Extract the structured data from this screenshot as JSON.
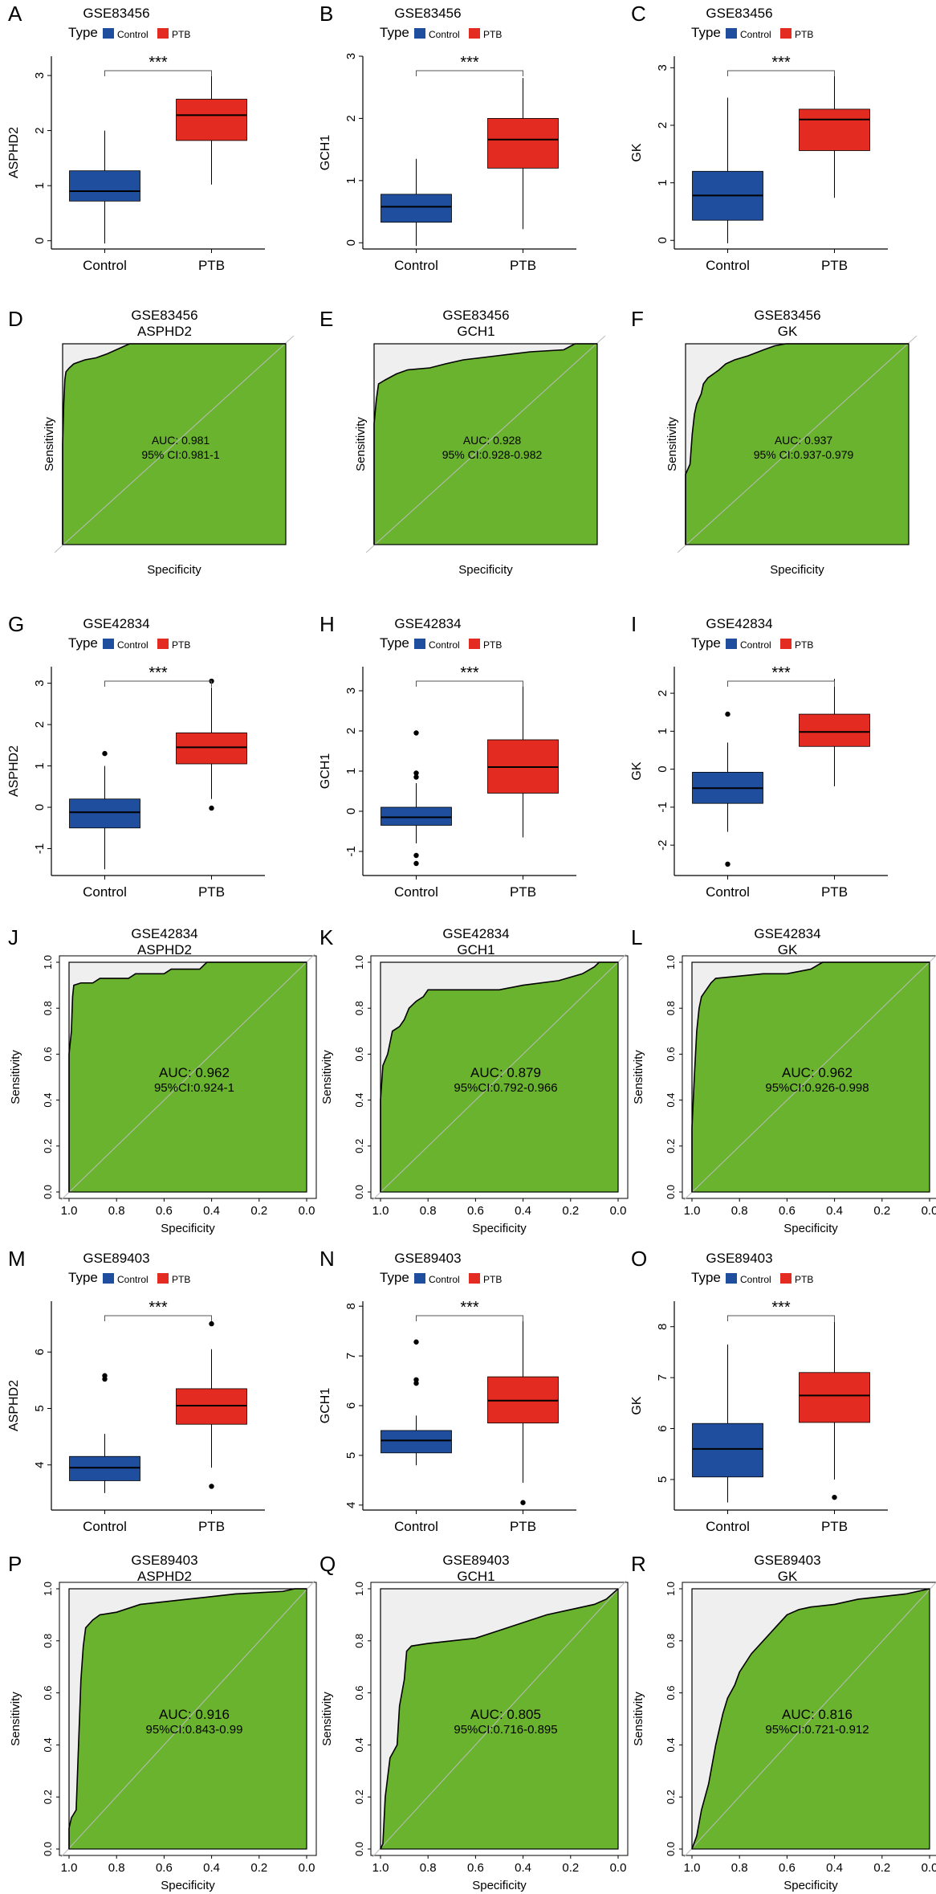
{
  "figure": {
    "colors": {
      "control": "#1f4e9e",
      "ptb": "#e32b21",
      "roc_fill": "#6ab32f",
      "roc_shade": "#efefef",
      "axis": "#000000"
    },
    "legend": {
      "title": "Type",
      "items": [
        "Control",
        "PTB"
      ]
    },
    "box_xlabels": [
      "Control",
      "PTB"
    ],
    "roc_axis": {
      "sensitivity": "Sensitivity",
      "specificity": "Specificity"
    }
  },
  "chart_data": [
    {
      "panel": "A",
      "type": "box",
      "title": "GSE83456",
      "ylabel": "ASPHD2",
      "ylim": [
        -0.15,
        3.35
      ],
      "yticks": [
        "0",
        "1",
        "2",
        "3"
      ],
      "signif": "***",
      "categories": [
        "Control",
        "PTB"
      ],
      "boxes": [
        {
          "name": "Control",
          "min": -0.05,
          "q1": 0.72,
          "median": 0.9,
          "q3": 1.27,
          "max": 2.0,
          "outliers": []
        },
        {
          "name": "PTB",
          "min": 1.02,
          "q1": 1.82,
          "median": 2.28,
          "q3": 2.57,
          "max": 3.08,
          "outliers": []
        }
      ]
    },
    {
      "panel": "B",
      "type": "box",
      "title": "GSE83456",
      "ylabel": "GCH1",
      "ylim": [
        -0.1,
        3.0
      ],
      "yticks": [
        "0",
        "1",
        "2",
        "3"
      ],
      "signif": "***",
      "categories": [
        "Control",
        "PTB"
      ],
      "boxes": [
        {
          "name": "Control",
          "min": -0.05,
          "q1": 0.33,
          "median": 0.58,
          "q3": 0.78,
          "max": 1.35,
          "outliers": []
        },
        {
          "name": "PTB",
          "min": 0.22,
          "q1": 1.2,
          "median": 1.66,
          "q3": 2.0,
          "max": 2.65,
          "outliers": []
        }
      ]
    },
    {
      "panel": "C",
      "type": "box",
      "title": "GSE83456",
      "ylabel": "GK",
      "ylim": [
        -0.15,
        3.2
      ],
      "yticks": [
        "0",
        "1",
        "2",
        "3"
      ],
      "signif": "***",
      "categories": [
        "Control",
        "PTB"
      ],
      "boxes": [
        {
          "name": "Control",
          "min": -0.05,
          "q1": 0.35,
          "median": 0.78,
          "q3": 1.2,
          "max": 2.48,
          "outliers": []
        },
        {
          "name": "PTB",
          "min": 0.74,
          "q1": 1.56,
          "median": 2.1,
          "q3": 2.28,
          "max": 2.86,
          "outliers": []
        }
      ]
    },
    {
      "panel": "D",
      "type": "roc",
      "title": "GSE83456",
      "subtitle": "ASPHD2",
      "auc": "AUC: 0.981",
      "ci": "95% CI:0.981-1",
      "ticks": false,
      "curve": [
        [
          1,
          0
        ],
        [
          1,
          0.5
        ],
        [
          0.995,
          0.7
        ],
        [
          0.99,
          0.82
        ],
        [
          0.985,
          0.86
        ],
        [
          0.97,
          0.88
        ],
        [
          0.95,
          0.9
        ],
        [
          0.9,
          0.92
        ],
        [
          0.85,
          0.93
        ],
        [
          0.8,
          0.95
        ],
        [
          0.76,
          0.97
        ],
        [
          0.7,
          1.0
        ],
        [
          0,
          1.0
        ]
      ]
    },
    {
      "panel": "E",
      "type": "roc",
      "title": "GSE83456",
      "subtitle": "GCH1",
      "auc": "AUC: 0.928",
      "ci": "95% CI:0.928-0.982",
      "ticks": false,
      "curve": [
        [
          1,
          0
        ],
        [
          1,
          0.6
        ],
        [
          0.99,
          0.72
        ],
        [
          0.98,
          0.8
        ],
        [
          0.95,
          0.82
        ],
        [
          0.9,
          0.85
        ],
        [
          0.85,
          0.87
        ],
        [
          0.75,
          0.88
        ],
        [
          0.68,
          0.9
        ],
        [
          0.6,
          0.92
        ],
        [
          0.45,
          0.94
        ],
        [
          0.3,
          0.96
        ],
        [
          0.15,
          0.97
        ],
        [
          0.1,
          1.0
        ],
        [
          0,
          1.0
        ]
      ]
    },
    {
      "panel": "F",
      "type": "roc",
      "title": "GSE83456",
      "subtitle": "GK",
      "auc": "AUC: 0.937",
      "ci": "95% CI:0.937-0.979",
      "ticks": false,
      "curve": [
        [
          1,
          0
        ],
        [
          1,
          0.35
        ],
        [
          0.98,
          0.4
        ],
        [
          0.97,
          0.55
        ],
        [
          0.96,
          0.65
        ],
        [
          0.95,
          0.7
        ],
        [
          0.93,
          0.75
        ],
        [
          0.92,
          0.8
        ],
        [
          0.9,
          0.83
        ],
        [
          0.85,
          0.87
        ],
        [
          0.82,
          0.9
        ],
        [
          0.78,
          0.92
        ],
        [
          0.72,
          0.94
        ],
        [
          0.65,
          0.97
        ],
        [
          0.6,
          0.99
        ],
        [
          0.55,
          1.0
        ],
        [
          0,
          1.0
        ]
      ]
    },
    {
      "panel": "G",
      "type": "box",
      "title": "GSE42834",
      "ylabel": "ASPHD2",
      "ylim": [
        -1.65,
        3.4
      ],
      "yticks": [
        "-1",
        "0",
        "1",
        "2",
        "3"
      ],
      "signif": "***",
      "categories": [
        "Control",
        "PTB"
      ],
      "boxes": [
        {
          "name": "Control",
          "min": -1.5,
          "q1": -0.5,
          "median": -0.12,
          "q3": 0.2,
          "max": 1.0,
          "outliers": [
            1.3
          ]
        },
        {
          "name": "PTB",
          "min": 0.2,
          "q1": 1.05,
          "median": 1.45,
          "q3": 1.8,
          "max": 2.9,
          "outliers": [
            3.05,
            -0.02
          ]
        }
      ]
    },
    {
      "panel": "H",
      "type": "box",
      "title": "GSE42834",
      "ylabel": "GCH1",
      "ylim": [
        -1.6,
        3.6
      ],
      "yticks": [
        "-1",
        "0",
        "1",
        "2",
        "3"
      ],
      "signif": "***",
      "categories": [
        "Control",
        "PTB"
      ],
      "boxes": [
        {
          "name": "Control",
          "min": -0.8,
          "q1": -0.35,
          "median": -0.15,
          "q3": 0.1,
          "max": 0.7,
          "outliers": [
            1.95,
            0.95,
            0.85,
            -1.1,
            -1.3
          ]
        },
        {
          "name": "PTB",
          "min": -0.65,
          "q1": 0.45,
          "median": 1.1,
          "q3": 1.78,
          "max": 3.2,
          "outliers": []
        }
      ]
    },
    {
      "panel": "I",
      "type": "box",
      "title": "GSE42834",
      "ylabel": "GK",
      "ylim": [
        -2.8,
        2.7
      ],
      "yticks": [
        "-2",
        "-1",
        "0",
        "1",
        "2"
      ],
      "signif": "***",
      "categories": [
        "Control",
        "PTB"
      ],
      "boxes": [
        {
          "name": "Control",
          "min": -1.65,
          "q1": -0.9,
          "median": -0.5,
          "q3": -0.08,
          "max": 0.7,
          "outliers": [
            1.45,
            -2.5
          ]
        },
        {
          "name": "PTB",
          "min": -0.45,
          "q1": 0.6,
          "median": 0.98,
          "q3": 1.45,
          "max": 2.38,
          "outliers": []
        }
      ]
    },
    {
      "panel": "J",
      "type": "roc",
      "title": "GSE42834",
      "subtitle": "ASPHD2",
      "auc": "AUC: 0.962",
      "ci": "95%CI:0.924-1",
      "ticks": true,
      "curve": [
        [
          1,
          0
        ],
        [
          1,
          0.6
        ],
        [
          0.99,
          0.7
        ],
        [
          0.985,
          0.85
        ],
        [
          0.98,
          0.9
        ],
        [
          0.95,
          0.91
        ],
        [
          0.9,
          0.91
        ],
        [
          0.87,
          0.93
        ],
        [
          0.75,
          0.93
        ],
        [
          0.72,
          0.95
        ],
        [
          0.6,
          0.95
        ],
        [
          0.57,
          0.97
        ],
        [
          0.45,
          0.97
        ],
        [
          0.42,
          1.0
        ],
        [
          0,
          1.0
        ]
      ]
    },
    {
      "panel": "K",
      "type": "roc",
      "title": "GSE42834",
      "subtitle": "GCH1",
      "auc": "AUC: 0.879",
      "ci": "95%CI:0.792-0.966",
      "ticks": true,
      "curve": [
        [
          1,
          0
        ],
        [
          1,
          0.4
        ],
        [
          0.99,
          0.55
        ],
        [
          0.97,
          0.6
        ],
        [
          0.96,
          0.65
        ],
        [
          0.95,
          0.7
        ],
        [
          0.92,
          0.72
        ],
        [
          0.9,
          0.75
        ],
        [
          0.88,
          0.8
        ],
        [
          0.85,
          0.83
        ],
        [
          0.82,
          0.85
        ],
        [
          0.8,
          0.88
        ],
        [
          0.6,
          0.88
        ],
        [
          0.5,
          0.88
        ],
        [
          0.4,
          0.9
        ],
        [
          0.25,
          0.92
        ],
        [
          0.15,
          0.95
        ],
        [
          0.1,
          0.98
        ],
        [
          0.08,
          1.0
        ],
        [
          0,
          1.0
        ]
      ]
    },
    {
      "panel": "L",
      "type": "roc",
      "title": "GSE42834",
      "subtitle": "GK",
      "auc": "AUC: 0.962",
      "ci": "95%CI:0.926-0.998",
      "ticks": true,
      "curve": [
        [
          1,
          0
        ],
        [
          1,
          0.28
        ],
        [
          0.99,
          0.5
        ],
        [
          0.98,
          0.7
        ],
        [
          0.97,
          0.8
        ],
        [
          0.96,
          0.85
        ],
        [
          0.94,
          0.88
        ],
        [
          0.92,
          0.91
        ],
        [
          0.9,
          0.93
        ],
        [
          0.8,
          0.94
        ],
        [
          0.7,
          0.95
        ],
        [
          0.6,
          0.95
        ],
        [
          0.5,
          0.97
        ],
        [
          0.45,
          1.0
        ],
        [
          0,
          1.0
        ]
      ]
    },
    {
      "panel": "M",
      "type": "box",
      "title": "GSE89403",
      "ylabel": "ASPHD2",
      "ylim": [
        3.2,
        6.9
      ],
      "yticks": [
        "4",
        "5",
        "6"
      ],
      "signif": "***",
      "categories": [
        "Control",
        "PTB"
      ],
      "boxes": [
        {
          "name": "Control",
          "min": 3.5,
          "q1": 3.72,
          "median": 3.95,
          "q3": 4.15,
          "max": 4.55,
          "outliers": [
            5.58,
            5.52
          ]
        },
        {
          "name": "PTB",
          "min": 3.95,
          "q1": 4.72,
          "median": 5.05,
          "q3": 5.35,
          "max": 6.05,
          "outliers": [
            6.5,
            3.62
          ]
        }
      ]
    },
    {
      "panel": "N",
      "type": "box",
      "title": "GSE89403",
      "ylabel": "GCH1",
      "ylim": [
        3.9,
        8.1
      ],
      "yticks": [
        "4",
        "5",
        "6",
        "7",
        "8"
      ],
      "signif": "***",
      "categories": [
        "Control",
        "PTB"
      ],
      "boxes": [
        {
          "name": "Control",
          "min": 4.8,
          "q1": 5.05,
          "median": 5.3,
          "q3": 5.5,
          "max": 5.8,
          "outliers": [
            7.28,
            6.52,
            6.45
          ]
        },
        {
          "name": "PTB",
          "min": 4.45,
          "q1": 5.65,
          "median": 6.1,
          "q3": 6.58,
          "max": 7.7,
          "outliers": [
            4.05
          ]
        }
      ]
    },
    {
      "panel": "O",
      "type": "box",
      "title": "GSE89403",
      "ylabel": "GK",
      "ylim": [
        4.4,
        8.5
      ],
      "yticks": [
        "5",
        "6",
        "7",
        "8"
      ],
      "signif": "***",
      "categories": [
        "Control",
        "PTB"
      ],
      "boxes": [
        {
          "name": "Control",
          "min": 4.55,
          "q1": 5.05,
          "median": 5.6,
          "q3": 6.1,
          "max": 7.65,
          "outliers": []
        },
        {
          "name": "PTB",
          "min": 5.0,
          "q1": 6.12,
          "median": 6.65,
          "q3": 7.1,
          "max": 8.1,
          "outliers": [
            4.65
          ]
        }
      ]
    },
    {
      "panel": "P",
      "type": "roc",
      "title": "GSE89403",
      "subtitle": "ASPHD2",
      "auc": "AUC: 0.916",
      "ci": "95%CI:0.843-0.99",
      "ticks": true,
      "curve": [
        [
          1,
          0
        ],
        [
          1,
          0.08
        ],
        [
          0.99,
          0.12
        ],
        [
          0.97,
          0.15
        ],
        [
          0.96,
          0.4
        ],
        [
          0.95,
          0.65
        ],
        [
          0.94,
          0.78
        ],
        [
          0.93,
          0.85
        ],
        [
          0.9,
          0.88
        ],
        [
          0.87,
          0.9
        ],
        [
          0.8,
          0.91
        ],
        [
          0.7,
          0.94
        ],
        [
          0.6,
          0.95
        ],
        [
          0.5,
          0.96
        ],
        [
          0.3,
          0.98
        ],
        [
          0.1,
          0.99
        ],
        [
          0.05,
          1.0
        ],
        [
          0,
          1.0
        ]
      ]
    },
    {
      "panel": "Q",
      "type": "roc",
      "title": "GSE89403",
      "subtitle": "GCH1",
      "auc": "AUC: 0.805",
      "ci": "95%CI:0.716-0.895",
      "ticks": true,
      "curve": [
        [
          1,
          0
        ],
        [
          0.99,
          0.02
        ],
        [
          0.98,
          0.2
        ],
        [
          0.96,
          0.35
        ],
        [
          0.93,
          0.4
        ],
        [
          0.92,
          0.55
        ],
        [
          0.9,
          0.65
        ],
        [
          0.89,
          0.76
        ],
        [
          0.87,
          0.78
        ],
        [
          0.8,
          0.79
        ],
        [
          0.7,
          0.8
        ],
        [
          0.6,
          0.81
        ],
        [
          0.5,
          0.84
        ],
        [
          0.4,
          0.87
        ],
        [
          0.3,
          0.9
        ],
        [
          0.2,
          0.92
        ],
        [
          0.1,
          0.94
        ],
        [
          0.05,
          0.96
        ],
        [
          0,
          1.0
        ]
      ]
    },
    {
      "panel": "R",
      "type": "roc",
      "title": "GSE89403",
      "subtitle": "GK",
      "auc": "AUC: 0.816",
      "ci": "95%CI:0.721-0.912",
      "ticks": true,
      "curve": [
        [
          1,
          0
        ],
        [
          0.98,
          0.05
        ],
        [
          0.96,
          0.15
        ],
        [
          0.93,
          0.25
        ],
        [
          0.9,
          0.4
        ],
        [
          0.87,
          0.52
        ],
        [
          0.85,
          0.58
        ],
        [
          0.82,
          0.63
        ],
        [
          0.8,
          0.68
        ],
        [
          0.75,
          0.75
        ],
        [
          0.7,
          0.8
        ],
        [
          0.65,
          0.85
        ],
        [
          0.6,
          0.9
        ],
        [
          0.55,
          0.92
        ],
        [
          0.5,
          0.93
        ],
        [
          0.4,
          0.94
        ],
        [
          0.3,
          0.96
        ],
        [
          0.2,
          0.97
        ],
        [
          0.1,
          0.98
        ],
        [
          0,
          1.0
        ]
      ]
    }
  ]
}
